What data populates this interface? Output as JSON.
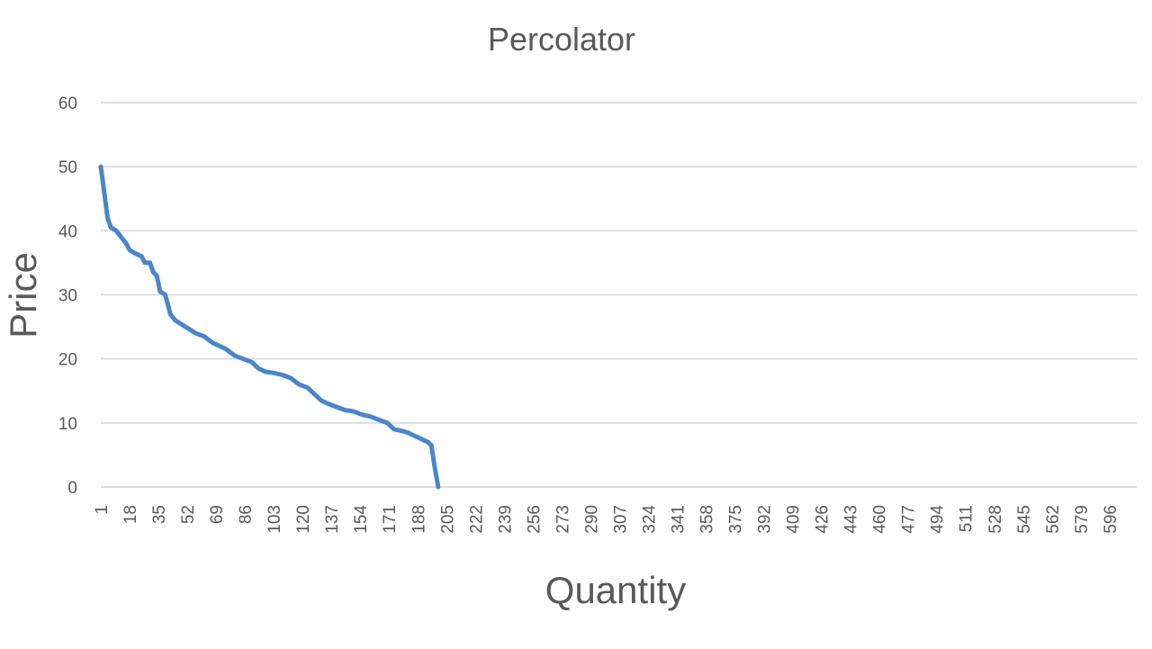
{
  "chart_data": {
    "type": "line",
    "title": "Percolator",
    "xlabel": "Quantity",
    "ylabel": "Price",
    "ylim": [
      0,
      60
    ],
    "y_ticks": [
      0,
      10,
      20,
      30,
      40,
      50,
      60
    ],
    "x_range": [
      1,
      612
    ],
    "x_tick_labels": [
      "1",
      "18",
      "35",
      "52",
      "69",
      "86",
      "103",
      "120",
      "137",
      "154",
      "171",
      "188",
      "205",
      "222",
      "239",
      "256",
      "273",
      "290",
      "307",
      "324",
      "341",
      "358",
      "375",
      "392",
      "409",
      "426",
      "443",
      "460",
      "477",
      "494",
      "511",
      "528",
      "545",
      "562",
      "579",
      "596"
    ],
    "grid": true,
    "legend": "none",
    "series": [
      {
        "color": "#4a86c8",
        "points": [
          [
            1,
            50
          ],
          [
            3,
            46
          ],
          [
            5,
            42
          ],
          [
            7,
            40.5
          ],
          [
            10,
            40
          ],
          [
            13,
            39
          ],
          [
            16,
            38
          ],
          [
            18,
            37
          ],
          [
            21,
            36.5
          ],
          [
            25,
            36
          ],
          [
            27,
            35
          ],
          [
            30,
            35
          ],
          [
            32,
            33.5
          ],
          [
            34,
            33
          ],
          [
            36,
            30.5
          ],
          [
            39,
            30
          ],
          [
            41,
            28
          ],
          [
            42,
            27
          ],
          [
            45,
            26
          ],
          [
            48,
            25.5
          ],
          [
            51,
            25
          ],
          [
            54,
            24.5
          ],
          [
            57,
            24
          ],
          [
            62,
            23.5
          ],
          [
            67,
            22.5
          ],
          [
            71,
            22
          ],
          [
            75,
            21.5
          ],
          [
            80,
            20.5
          ],
          [
            85,
            20
          ],
          [
            90,
            19.5
          ],
          [
            94,
            18.5
          ],
          [
            98,
            18
          ],
          [
            103,
            17.8
          ],
          [
            108,
            17.5
          ],
          [
            113,
            17
          ],
          [
            118,
            16
          ],
          [
            123,
            15.5
          ],
          [
            127,
            14.5
          ],
          [
            131,
            13.5
          ],
          [
            135,
            13
          ],
          [
            140,
            12.5
          ],
          [
            145,
            12
          ],
          [
            150,
            11.8
          ],
          [
            155,
            11.3
          ],
          [
            160,
            11
          ],
          [
            165,
            10.5
          ],
          [
            170,
            10
          ],
          [
            174,
            9
          ],
          [
            178,
            8.8
          ],
          [
            182,
            8.5
          ],
          [
            186,
            8
          ],
          [
            190,
            7.5
          ],
          [
            194,
            7
          ],
          [
            196,
            6.5
          ],
          [
            198,
            3
          ],
          [
            200,
            0
          ]
        ]
      }
    ]
  }
}
